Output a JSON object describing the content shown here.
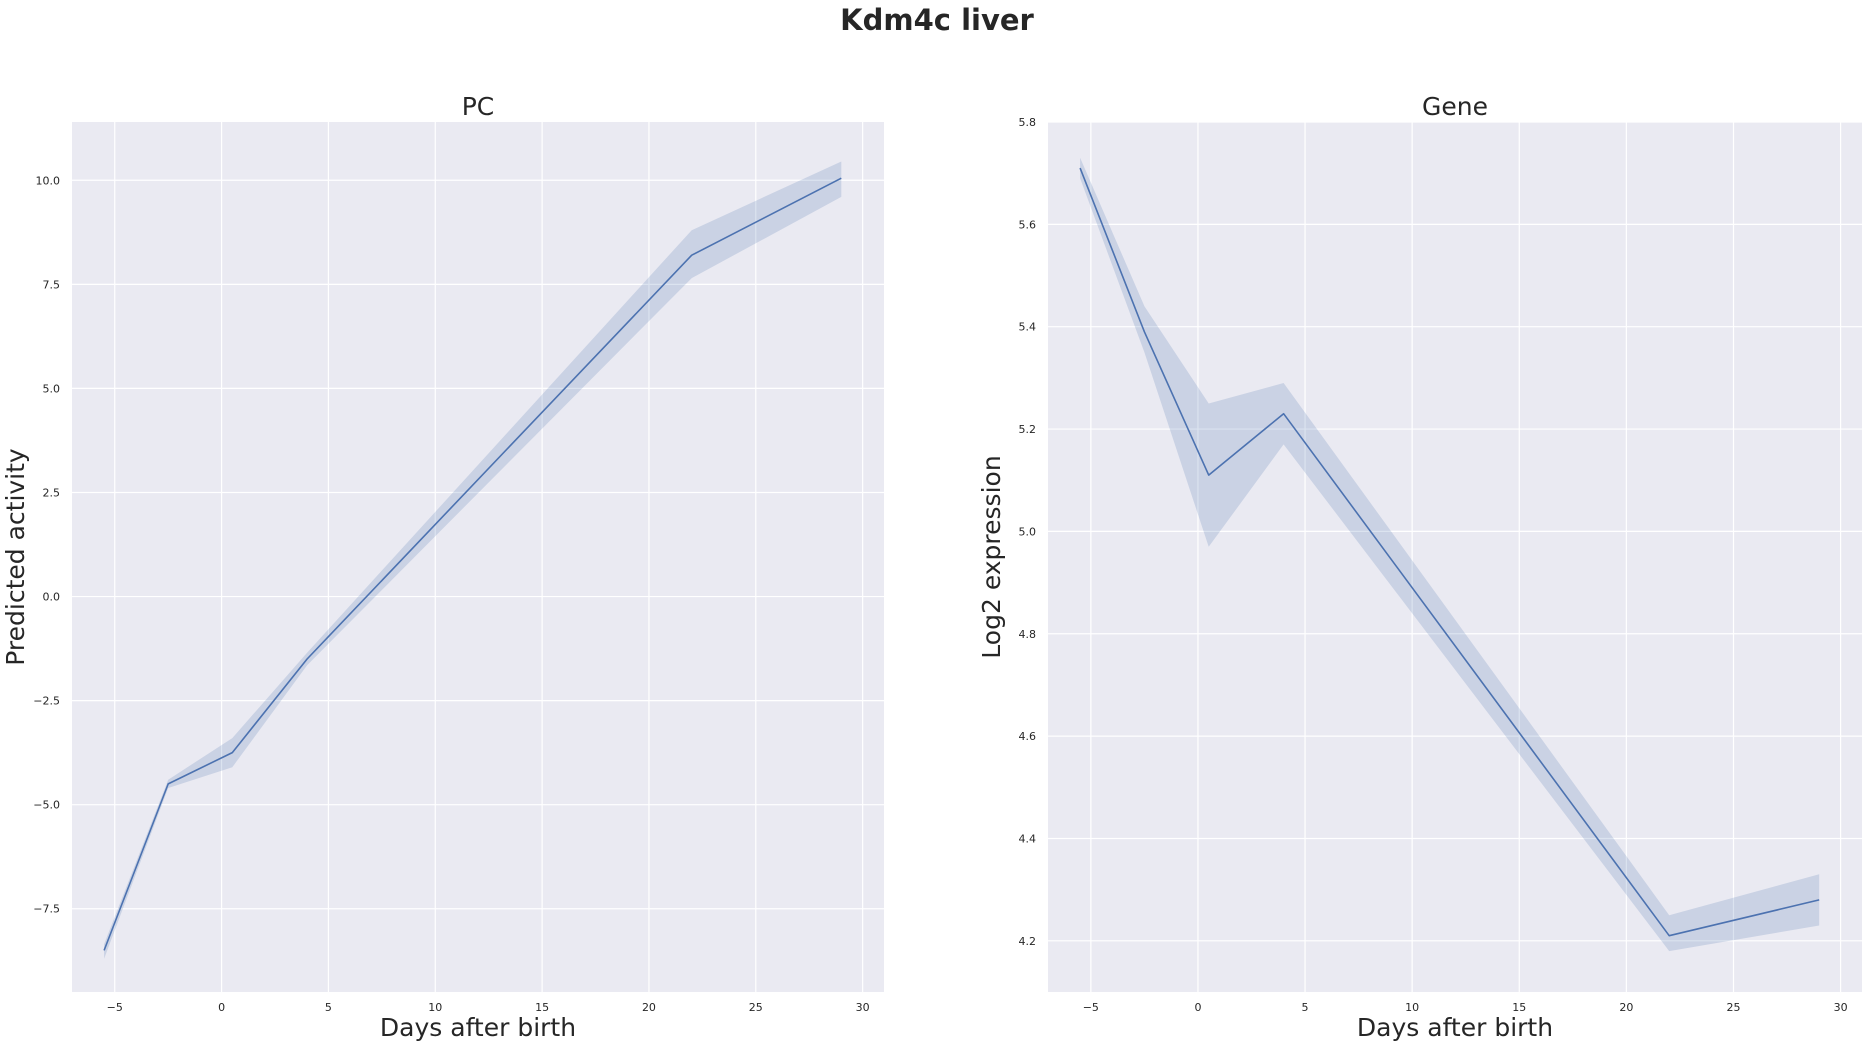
{
  "figure": {
    "title": "Kdm4c liver"
  },
  "chart_data": [
    {
      "type": "line",
      "title": "PC",
      "xlabel": "Days after birth",
      "ylabel": "Predicted activity",
      "xlim": [
        -7,
        31
      ],
      "ylim": [
        -9.5,
        11.4
      ],
      "x_ticks": [
        -5,
        0,
        5,
        10,
        15,
        20,
        25,
        30
      ],
      "x_tick_labels": [
        "−5",
        "0",
        "5",
        "10",
        "15",
        "20",
        "25",
        "30"
      ],
      "y_ticks": [
        -7.5,
        -5.0,
        -2.5,
        0.0,
        2.5,
        5.0,
        7.5,
        10.0
      ],
      "y_tick_labels": [
        "−7.5",
        "−5.0",
        "−2.5",
        "0.0",
        "2.5",
        "5.0",
        "7.5",
        "10.0"
      ],
      "grid": true,
      "color": "#4c72b0",
      "series": [
        {
          "x": [
            -5.5,
            -2.5,
            0.5,
            4,
            22,
            29
          ],
          "y": [
            -8.5,
            -4.5,
            -3.75,
            -1.5,
            8.2,
            10.05
          ],
          "ci_low": [
            -8.7,
            -4.6,
            -4.1,
            -1.65,
            7.65,
            9.6
          ],
          "ci_high": [
            -8.35,
            -4.4,
            -3.4,
            -1.35,
            8.8,
            10.45
          ]
        }
      ]
    },
    {
      "type": "line",
      "title": "Gene",
      "xlabel": "Days after birth",
      "ylabel": "Log2 expression",
      "xlim": [
        -7,
        31
      ],
      "ylim": [
        4.1,
        5.8
      ],
      "x_ticks": [
        -5,
        0,
        5,
        10,
        15,
        20,
        25,
        30
      ],
      "x_tick_labels": [
        "−5",
        "0",
        "5",
        "10",
        "15",
        "20",
        "25",
        "30"
      ],
      "y_ticks": [
        4.2,
        4.4,
        4.6,
        4.8,
        5.0,
        5.2,
        5.4,
        5.6,
        5.8
      ],
      "y_tick_labels": [
        "4.2",
        "4.4",
        "4.6",
        "4.8",
        "5.0",
        "5.2",
        "5.4",
        "5.6",
        "5.8"
      ],
      "grid": true,
      "color": "#4c72b0",
      "series": [
        {
          "x": [
            -5.5,
            -2.5,
            0.5,
            4,
            22,
            29
          ],
          "y": [
            5.71,
            5.39,
            5.11,
            5.23,
            4.21,
            4.28
          ],
          "ci_low": [
            5.69,
            5.35,
            4.97,
            5.17,
            4.18,
            4.23
          ],
          "ci_high": [
            5.73,
            5.44,
            5.25,
            5.29,
            4.25,
            4.33
          ]
        }
      ]
    }
  ]
}
